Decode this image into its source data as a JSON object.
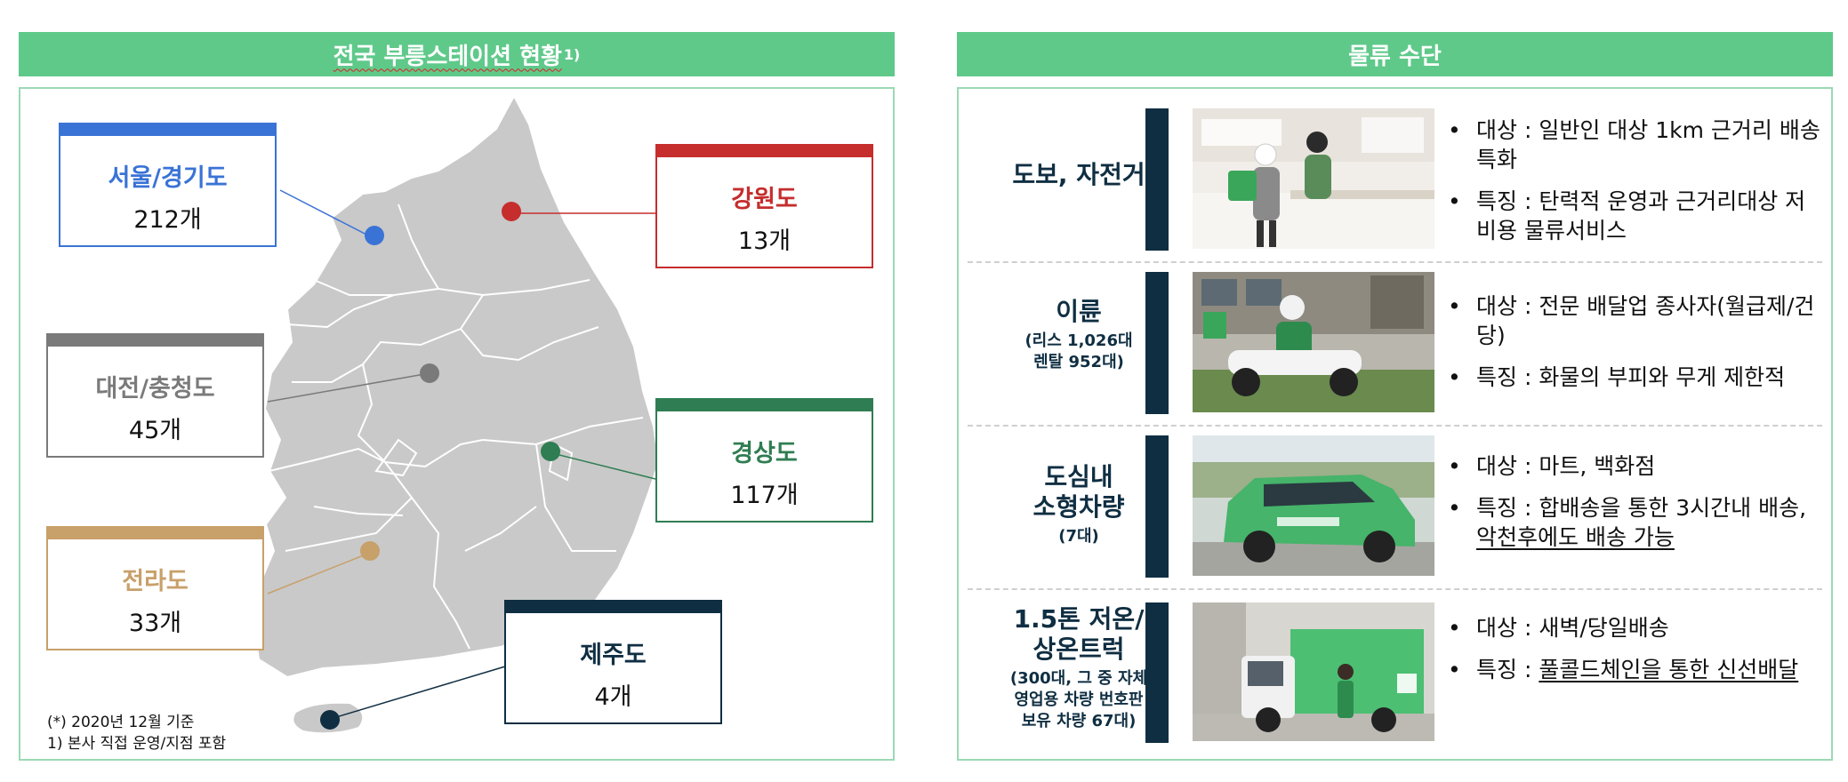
{
  "left": {
    "header_title": "전국 부릉스테이션 현황",
    "header_sup": "1)",
    "regions": [
      {
        "name": "서울/경기도",
        "count": "212개",
        "color": "#3a73d6"
      },
      {
        "name": "강원도",
        "count": "13개",
        "color": "#c62d2d"
      },
      {
        "name": "대전/충청도",
        "count": "45개",
        "color": "#7a7a7a"
      },
      {
        "name": "경상도",
        "count": "117개",
        "color": "#2f7d52"
      },
      {
        "name": "전라도",
        "count": "33개",
        "color": "#c8a06a"
      },
      {
        "name": "제주도",
        "count": "4개",
        "color": "#0f2e42"
      }
    ],
    "footnotes": [
      "(*) 2020년 12월 기준",
      "1) 본사 직접 운영/지점 포함"
    ]
  },
  "right": {
    "header_title": "물류 수단",
    "rows": [
      {
        "title": "도보, 자전거",
        "subtitle": "",
        "photo": "walking-courier-photo",
        "bullets": [
          {
            "text": "대상 : 일반인 대상 1km 근거리 배송 특화"
          },
          {
            "text": "특징 : 탄력적 운영과 근거리대상 저비용 물류서비스"
          }
        ]
      },
      {
        "title": "이륜",
        "subtitle": "(리스 1,026대\n렌탈 952대)",
        "photo": "motorbike-courier-photo",
        "bullets": [
          {
            "text": "대상 : 전문 배달업 종사자(월급제/건당)"
          },
          {
            "text": "특징 : 화물의 부피와 무게 제한적"
          }
        ]
      },
      {
        "title": "도심내\n소형차량",
        "subtitle": "(7대)",
        "photo": "green-car-photo",
        "bullets": [
          {
            "text": "대상 : 마트, 백화점"
          },
          {
            "text": "특징 : 합배송을 통한 3시간내 배송, ",
            "underline": "악천후에도 배송 가능"
          }
        ]
      },
      {
        "title": "1.5톤 저온/\n상온트럭",
        "subtitle": "(300대, 그 중 자체\n영업용 차량 번호판\n보유 차량 67대)",
        "photo": "cold-truck-photo",
        "bullets": [
          {
            "text": "대상 : 새벽/당일배송"
          },
          {
            "text": "특징 : ",
            "underline": "풀콜드체인을 통한 신선배달"
          }
        ]
      }
    ]
  },
  "colors": {
    "header_green": "#5fc98a",
    "panel_border": "#9bd9b4",
    "navy": "#0f2e42",
    "map_gray": "#c9c9c9"
  }
}
